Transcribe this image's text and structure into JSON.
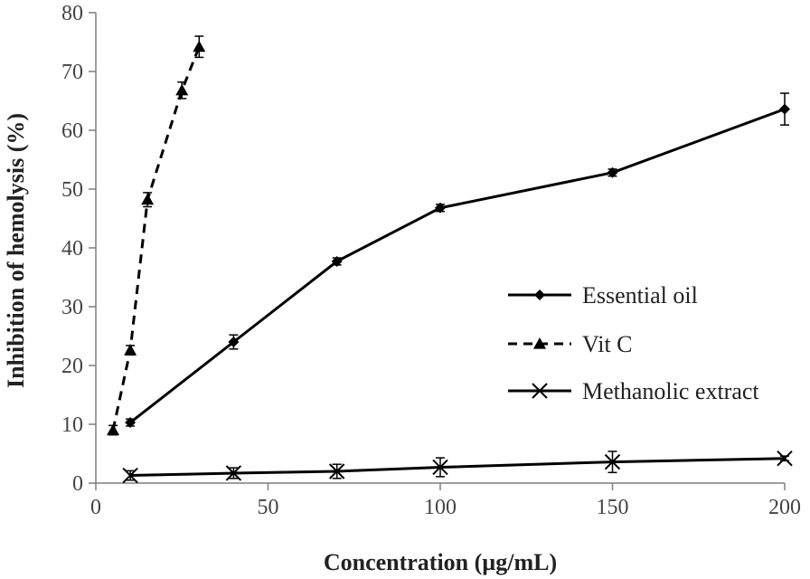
{
  "chart_data": {
    "type": "line",
    "title": "",
    "xlabel": "Concentration (µg/mL)",
    "ylabel": "Inhibition of hemolysis (%)",
    "xlim": [
      0,
      200
    ],
    "ylim": [
      0,
      80
    ],
    "xticks": [
      0,
      50,
      100,
      150,
      200
    ],
    "yticks": [
      0,
      10,
      20,
      30,
      40,
      50,
      60,
      70,
      80
    ],
    "grid": false,
    "legend_position": "right",
    "series": [
      {
        "name": "Essential oil",
        "color": "#000000",
        "dash": "solid",
        "marker": "diamond",
        "x": [
          10,
          40,
          70,
          100,
          150,
          200
        ],
        "y": [
          10.3,
          24.0,
          37.7,
          46.8,
          52.8,
          63.6
        ],
        "error": [
          0.6,
          1.2,
          0.6,
          0.6,
          0.6,
          2.7
        ]
      },
      {
        "name": "Vit C",
        "color": "#000000",
        "dash": "dashed",
        "marker": "triangle",
        "x": [
          5,
          10,
          15,
          25,
          30
        ],
        "y": [
          9.0,
          22.6,
          48.2,
          66.8,
          74.2
        ],
        "error": [
          0.8,
          0.8,
          1.2,
          1.4,
          1.8
        ]
      },
      {
        "name": "Methanolic extract",
        "color": "#000000",
        "dash": "solid",
        "marker": "x",
        "x": [
          10,
          40,
          70,
          100,
          150,
          200
        ],
        "y": [
          1.3,
          1.7,
          2.0,
          2.7,
          3.6,
          4.2
        ],
        "error": [
          0.8,
          0.9,
          1.2,
          1.6,
          1.8,
          0.4
        ]
      }
    ]
  }
}
